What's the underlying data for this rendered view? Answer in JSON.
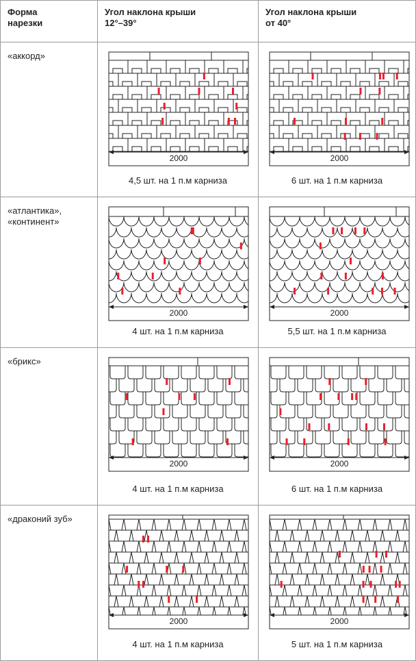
{
  "table": {
    "header": [
      [
        "Форма",
        "нарезки"
      ],
      [
        "Угол наклона крыши",
        "12°–39°"
      ],
      [
        "Угол наклона крыши",
        "от 40°"
      ]
    ],
    "rows": [
      {
        "label": [
          "«аккорд»"
        ],
        "cells": [
          {
            "dimension": "2000",
            "caption": "4,5 шт. на 1 п.м карниза"
          },
          {
            "dimension": "2000",
            "caption": "6 шт. на 1 п.м карниза"
          }
        ]
      },
      {
        "label": [
          "«атлантика»,",
          "«континент»"
        ],
        "cells": [
          {
            "dimension": "2000",
            "caption": "4 шт. на 1 п.м карниза"
          },
          {
            "dimension": "2000",
            "caption": "5,5 шт. на 1 п.м карниза"
          }
        ]
      },
      {
        "label": [
          "«брикс»"
        ],
        "cells": [
          {
            "dimension": "2000",
            "caption": "4 шт. на 1 п.м карниза"
          },
          {
            "dimension": "2000",
            "caption": "6 шт. на 1 п.м карниза"
          }
        ]
      },
      {
        "label": [
          "«драконий зуб»"
        ],
        "cells": [
          {
            "dimension": "2000",
            "caption": "4 шт. на 1 п.м карниза"
          },
          {
            "dimension": "2000",
            "caption": "5 шт. на 1 п.м карниза"
          }
        ]
      }
    ]
  }
}
